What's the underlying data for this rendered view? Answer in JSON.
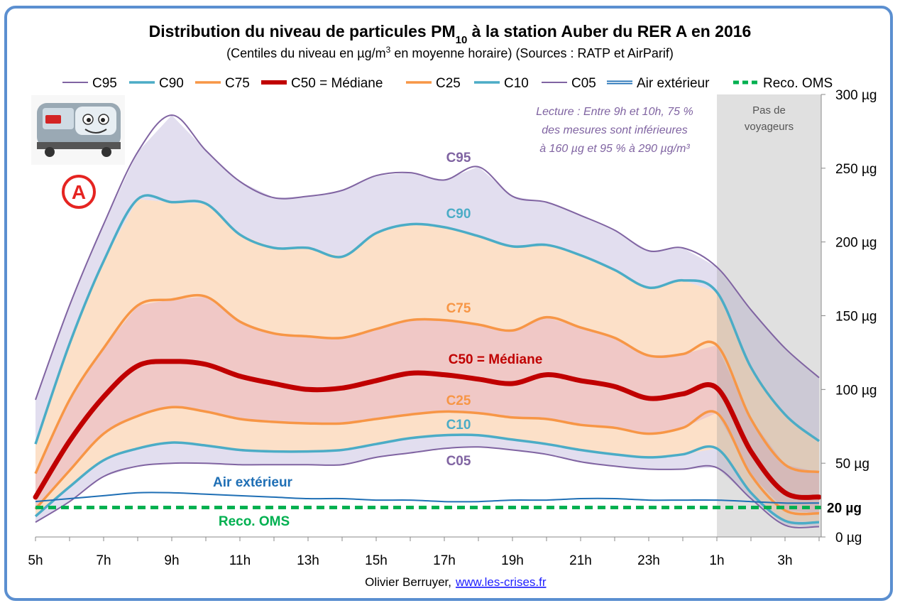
{
  "title": {
    "pre": "Distribution du niveau de particules PM",
    "sub": "10",
    "post": " à la station Auber du RER A en 2016"
  },
  "subtitle": {
    "pre": "(Centiles du niveau en µg/m",
    "sup": "3",
    "post": " en moyenne horaire) (Sources : RATP et AirParif)"
  },
  "badge": "A",
  "annotation": [
    "Lecture :  Entre 9h et 10h, 75 %",
    "des mesures sont inférieures",
    "à 160 µg et 95 % à 290 µg/m³"
  ],
  "no_passengers": [
    "Pas de",
    "voyageurs"
  ],
  "footer": {
    "author": "Olivier Berruyer,",
    "link": "www.les-crises.fr"
  },
  "colors": {
    "purple": "#8064a2",
    "teal": "#4bacc6",
    "orange": "#f79646",
    "red": "#c00000",
    "blue": "#1f6fb5",
    "green": "#00b050"
  },
  "chart_data": {
    "type": "line",
    "x": [
      "5h",
      "6h",
      "7h",
      "8h",
      "9h",
      "10h",
      "11h",
      "12h",
      "13h",
      "14h",
      "15h",
      "16h",
      "17h",
      "18h",
      "19h",
      "20h",
      "21h",
      "22h",
      "23h",
      "0h",
      "1h",
      "2h",
      "3h",
      "4h"
    ],
    "xticks": [
      "5h",
      "7h",
      "9h",
      "11h",
      "13h",
      "15h",
      "17h",
      "19h",
      "21h",
      "23h",
      "1h",
      "3h"
    ],
    "yticks": [
      "0 µg",
      "50 µg",
      "100 µg",
      "150 µg",
      "200 µg",
      "250 µg",
      "300 µg"
    ],
    "ylim": [
      0,
      300
    ],
    "y_highlight": {
      "value": 20,
      "label": "20 µg"
    },
    "shaded_region": {
      "from": "1h",
      "to": "4h",
      "label": "Pas de voyageurs"
    },
    "series": [
      {
        "name": "C95",
        "label": "C95",
        "color": "#8064a2",
        "width": 2,
        "values": [
          93,
          157,
          212,
          261,
          286,
          262,
          241,
          230,
          231,
          235,
          245,
          247,
          242,
          251,
          231,
          227,
          218,
          208,
          194,
          196,
          183,
          154,
          128,
          108
        ]
      },
      {
        "name": "C90",
        "label": "C90",
        "color": "#4bacc6",
        "width": 3.5,
        "values": [
          63,
          131,
          187,
          229,
          227,
          226,
          205,
          196,
          196,
          190,
          206,
          212,
          210,
          204,
          197,
          198,
          191,
          181,
          169,
          174,
          166,
          115,
          83,
          65
        ]
      },
      {
        "name": "C75",
        "label": "C75",
        "color": "#f79646",
        "width": 3.5,
        "values": [
          43,
          93,
          128,
          157,
          161,
          163,
          146,
          138,
          136,
          135,
          141,
          147,
          147,
          144,
          140,
          149,
          142,
          135,
          123,
          124,
          130,
          80,
          49,
          44
        ]
      },
      {
        "name": "C50 = Médiane",
        "label": "C50 = Médiane",
        "color": "#c00000",
        "width": 7,
        "values": [
          27,
          65,
          95,
          116,
          119,
          117,
          109,
          104,
          100,
          101,
          106,
          111,
          110,
          107,
          104,
          110,
          106,
          102,
          94,
          97,
          101,
          58,
          30,
          27
        ]
      },
      {
        "name": "C25",
        "label": "C25",
        "color": "#f79646",
        "width": 3.5,
        "values": [
          19,
          45,
          70,
          82,
          88,
          85,
          80,
          78,
          77,
          77,
          80,
          83,
          85,
          84,
          81,
          80,
          76,
          74,
          70,
          74,
          84,
          42,
          18,
          16
        ]
      },
      {
        "name": "C10",
        "label": "C10",
        "color": "#4bacc6",
        "width": 3.5,
        "values": [
          14,
          34,
          52,
          60,
          64,
          62,
          59,
          58,
          58,
          59,
          63,
          67,
          69,
          69,
          66,
          63,
          59,
          56,
          54,
          56,
          60,
          30,
          11,
          10
        ]
      },
      {
        "name": "C05",
        "label": "C05",
        "color": "#8064a2",
        "width": 2,
        "values": [
          10,
          24,
          41,
          48,
          50,
          50,
          49,
          49,
          49,
          49,
          54,
          57,
          60,
          61,
          59,
          56,
          51,
          48,
          46,
          46,
          47,
          26,
          8,
          7
        ]
      },
      {
        "name": "Air extérieur",
        "label": "Air extérieur",
        "color": "#1f6fb5",
        "width": 2,
        "values": [
          24,
          26,
          28,
          30,
          30,
          29,
          28,
          27,
          26,
          26,
          25,
          25,
          24,
          24,
          25,
          25,
          26,
          26,
          25,
          25,
          25,
          24,
          23,
          23
        ]
      },
      {
        "name": "Reco. OMS",
        "label": "Reco. OMS",
        "color": "#00b050",
        "width": 5,
        "values": [
          20,
          20,
          20,
          20,
          20,
          20,
          20,
          20,
          20,
          20,
          20,
          20,
          20,
          20,
          20,
          20,
          20,
          20,
          20,
          20,
          20,
          20,
          20,
          20
        ]
      }
    ],
    "legend": [
      "C95",
      "C90",
      "C75",
      "C50 = Médiane",
      "C25",
      "C10",
      "C05",
      "Air extérieur",
      "Reco. OMS"
    ]
  }
}
